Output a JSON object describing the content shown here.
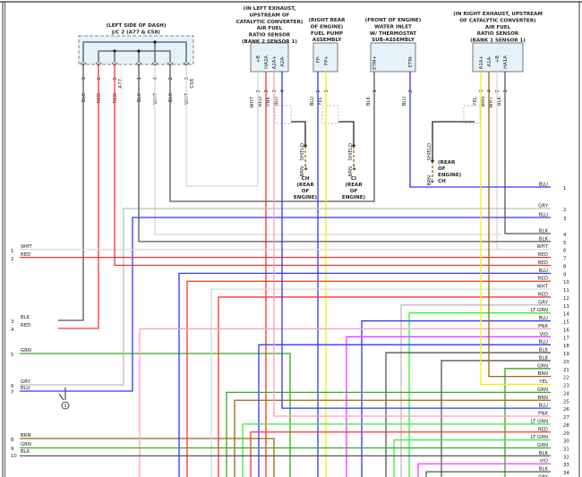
{
  "wire_colors": {
    "BLK": "#555555",
    "WHT": "#d8d8d8",
    "RED": "#ff3030",
    "BLU": "#3333ff",
    "GRY": "#bdbdbd",
    "LT GRN": "#33ee33",
    "PNK": "#ff9fbf",
    "VIO": "#ff33ff",
    "GRN": "#33aa22",
    "BRN": "#996611",
    "YEL": "#f2f200"
  },
  "components": {
    "jc": {
      "title": [
        "(LEFT SIDE OF DASH)",
        "J/C 2 (A77 & C58)"
      ],
      "connector_a": "A77",
      "connector_b": "C58",
      "pins": [
        {
          "wire": "BLK",
          "pin": "3"
        },
        {
          "wire": "RED",
          "pin": "6"
        },
        {
          "wire": "RED",
          "pin": "5"
        },
        {
          "wire": "BLK",
          "pin": "1"
        },
        {
          "wire": "WHT",
          "pin": "4"
        },
        {
          "wire": "BLK",
          "pin": "2"
        },
        {
          "wire": "WHT",
          "pin": "3"
        }
      ]
    },
    "left_sensor": {
      "title": [
        "(IN LEFT EXHAUST,",
        "UPSTREAM OF",
        "CATALYTIC CONVERTER)",
        "AIR FUEL",
        "RATIO SENSOR",
        "(BANK 2 SENSOR 1)"
      ],
      "pins": [
        {
          "name": "+B",
          "wire": "WHT",
          "pin": "2"
        },
        {
          "name": "HA2A",
          "wire": "RED",
          "pin": "1"
        },
        {
          "name": "A2A+",
          "wire": "PNK",
          "pin": "3"
        },
        {
          "name": "A2A-",
          "wire": "BLU",
          "pin": "4"
        }
      ]
    },
    "fuel_pump": {
      "title": [
        "(RIGHT REAR",
        "OF ENGINE)",
        "FUEL PUMP",
        "ASSEMBLY"
      ],
      "pins": [
        {
          "name": "FP-",
          "wire": "BLU",
          "pin": "2"
        },
        {
          "name": "FP+",
          "wire": "YEL",
          "pin": "1"
        }
      ]
    },
    "water_inlet": {
      "title": [
        "(FRONT OF ENGINE)",
        "WATER INLET",
        "W/ THERMOSTAT",
        "SUB-ASSEMBLY"
      ],
      "pins": [
        {
          "name": "ETM+",
          "wire": "BLK",
          "pin": "1"
        },
        {
          "name": "ETM-",
          "wire": "BLU",
          "pin": "2"
        }
      ]
    },
    "right_sensor": {
      "title": [
        "(IN RIGHT EXHAUST, UPSTREAM",
        "OF CATALYTIC CONVERTER)",
        "AIR FUEL",
        "RATIO SENSOR",
        "(BANK 1 SENSOR 1)"
      ],
      "pins": [
        {
          "name": "A1A+",
          "wire": "YEL",
          "pin": "3"
        },
        {
          "name": "A1A-",
          "wire": "BRN",
          "pin": "4"
        },
        {
          "name": "+B",
          "wire": "WHT",
          "pin": "2"
        },
        {
          "name": "HA1A",
          "wire": "BLK",
          "pin": "1"
        }
      ]
    }
  },
  "grounds": [
    {
      "shield": "SHIELD",
      "wire": "BRN",
      "label": [
        "CH",
        "(REAR",
        "OF",
        "ENGINE)"
      ]
    },
    {
      "shield": "SHIELD",
      "wire": "BRN",
      "label": [
        "CI",
        "(REAR",
        "OF",
        "ENGINE)"
      ]
    },
    {
      "shield": "SHIELD",
      "wire": "BRN",
      "label": [
        "(REAR",
        "OF",
        "ENGINE)",
        "CH"
      ]
    }
  ],
  "left_rows": [
    {
      "pin": "1",
      "wire": "WHT"
    },
    {
      "pin": "2",
      "wire": "RED"
    },
    {
      "pin": "3",
      "wire": "BLK"
    },
    {
      "pin": "4",
      "wire": "RED"
    },
    {
      "pin": "5",
      "wire": "GRN"
    },
    {
      "pin": "6",
      "wire": "GRY"
    },
    {
      "pin": "7",
      "wire": "BLU"
    },
    {
      "pin": "8",
      "wire": "BRN"
    },
    {
      "pin": "9",
      "wire": "GRN"
    },
    {
      "pin": "10",
      "wire": "BLK"
    }
  ],
  "splice_callout": "1",
  "right_rows": [
    {
      "pin": "1",
      "wire": "BLU"
    },
    {
      "pin": "2",
      "wire": "GRY"
    },
    {
      "pin": "3",
      "wire": "BLU"
    },
    {
      "pin": "4",
      "wire": "BLK"
    },
    {
      "pin": "5",
      "wire": "BLK"
    },
    {
      "pin": "6",
      "wire": "WHT"
    },
    {
      "pin": "7",
      "wire": "RED"
    },
    {
      "pin": "8",
      "wire": "RED"
    },
    {
      "pin": "9",
      "wire": "BLU"
    },
    {
      "pin": "10",
      "wire": "RED"
    },
    {
      "pin": "11",
      "wire": "WHT"
    },
    {
      "pin": "12",
      "wire": "RED"
    },
    {
      "pin": "13",
      "wire": "GRY"
    },
    {
      "pin": "14",
      "wire": "LT GRN"
    },
    {
      "pin": "15",
      "wire": "BLU"
    },
    {
      "pin": "16",
      "wire": "PNK"
    },
    {
      "pin": "17",
      "wire": "VIO"
    },
    {
      "pin": "18",
      "wire": "BLU"
    },
    {
      "pin": "19",
      "wire": "BLK"
    },
    {
      "pin": "20",
      "wire": "BLK"
    },
    {
      "pin": "21",
      "wire": "GRN"
    },
    {
      "pin": "22",
      "wire": "BRN"
    },
    {
      "pin": "23",
      "wire": "YEL"
    },
    {
      "pin": "24",
      "wire": "GRN"
    },
    {
      "pin": "25",
      "wire": "BRN"
    },
    {
      "pin": "26",
      "wire": "BLU"
    },
    {
      "pin": "27",
      "wire": "PNK"
    },
    {
      "pin": "28",
      "wire": "LT GRN"
    },
    {
      "pin": "29",
      "wire": "RED"
    },
    {
      "pin": "30",
      "wire": "LT GRN"
    },
    {
      "pin": "31",
      "wire": "GRN"
    },
    {
      "pin": "32",
      "wire": "BLK"
    },
    {
      "pin": "33",
      "wire": "VIO"
    },
    {
      "pin": "34",
      "wire": "BLK"
    },
    {
      "pin": "",
      "wire": "GRY"
    }
  ]
}
